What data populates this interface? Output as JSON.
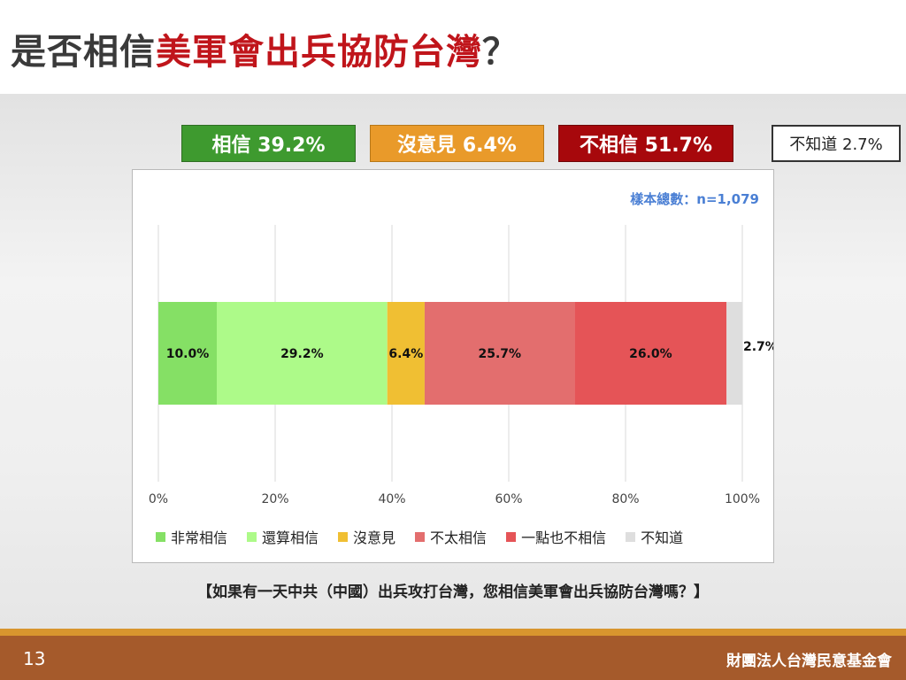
{
  "title": {
    "prefix": "是否相信",
    "highlight": "美軍會出兵協防台灣",
    "suffix": "？"
  },
  "summary": {
    "agree": "相信 39.2%",
    "neutral": "沒意見 6.4%",
    "disagree": "不相信 51.7%",
    "unknown": "不知道 2.7%"
  },
  "sample_note": "樣本總數：n=1,079",
  "question": "【如果有一天中共（中國）出兵攻打台灣，您相信美軍會出兵協防台灣嗎？】",
  "footer": {
    "page_number": "13",
    "organization": "財團法人台灣民意基金會"
  },
  "chart_data": {
    "type": "bar",
    "orientation": "horizontal-stacked-100",
    "xlim": [
      0,
      100
    ],
    "x_ticks": [
      "0%",
      "20%",
      "40%",
      "60%",
      "80%",
      "100%"
    ],
    "grid": true,
    "legend_position": "bottom",
    "series": [
      {
        "name": "非常相信",
        "value": 10.0,
        "label": "10.0%",
        "color": "#85e065"
      },
      {
        "name": "還算相信",
        "value": 29.2,
        "label": "29.2%",
        "color": "#adfa89"
      },
      {
        "name": "沒意見",
        "value": 6.4,
        "label": "6.4%",
        "color": "#f0bf33"
      },
      {
        "name": "不太相信",
        "value": 25.7,
        "label": "25.7%",
        "color": "#e36e6e"
      },
      {
        "name": "一點也不相信",
        "value": 26.0,
        "label": "26.0%",
        "color": "#e55457"
      },
      {
        "name": "不知道",
        "value": 2.7,
        "label": "2.7%",
        "color": "#dedede"
      }
    ]
  }
}
